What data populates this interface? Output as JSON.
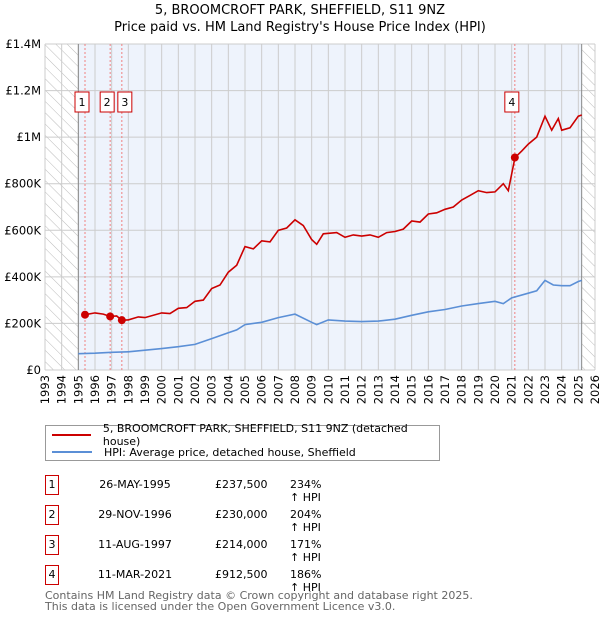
{
  "title_line1": "5, BROOMCROFT PARK, SHEFFIELD, S11 9NZ",
  "title_line2": "Price paid vs. HM Land Registry's House Price Index (HPI)",
  "chart_data": {
    "type": "line",
    "title": "5, BROOMCROFT PARK, SHEFFIELD, S11 9NZ — Price paid vs. HM Land Registry's House Price Index (HPI)",
    "xlim": [
      1993,
      2026
    ],
    "ylim": [
      0,
      1400000
    ],
    "x_ticks": [
      "1993",
      "1994",
      "1995",
      "1996",
      "1997",
      "1998",
      "1999",
      "2000",
      "2001",
      "2002",
      "2003",
      "2004",
      "2005",
      "2006",
      "2007",
      "2008",
      "2009",
      "2010",
      "2011",
      "2012",
      "2013",
      "2014",
      "2015",
      "2016",
      "2017",
      "2018",
      "2019",
      "2020",
      "2021",
      "2022",
      "2023",
      "2024",
      "2025",
      "2026"
    ],
    "y_ticks": [
      {
        "v": 0,
        "label": "£0"
      },
      {
        "v": 200000,
        "label": "£200K"
      },
      {
        "v": 400000,
        "label": "£400K"
      },
      {
        "v": 600000,
        "label": "£600K"
      },
      {
        "v": 800000,
        "label": "£800K"
      },
      {
        "v": 1000000,
        "label": "£1M"
      },
      {
        "v": 1200000,
        "label": "£1.2M"
      },
      {
        "v": 1400000,
        "label": "£1.4M"
      }
    ],
    "data_range": [
      1995.0,
      2025.2
    ],
    "series": [
      {
        "name": "5, BROOMCROFT PARK, SHEFFIELD, S11 9NZ (detached house)",
        "color": "#cc0000",
        "x": [
          1995.4,
          1996,
          1996.5,
          1996.9,
          1997.3,
          1997.6,
          1998,
          1998.6,
          1999,
          2000,
          2000.5,
          2001,
          2001.5,
          2002,
          2002.5,
          2003,
          2003.5,
          2004,
          2004.5,
          2005,
          2005.5,
          2006,
          2006.5,
          2007,
          2007.5,
          2008,
          2008.5,
          2009,
          2009.3,
          2009.7,
          2010.5,
          2011,
          2011.5,
          2012,
          2012.5,
          2013,
          2013.5,
          2014,
          2014.5,
          2015,
          2015.5,
          2016,
          2016.5,
          2017,
          2017.5,
          2018,
          2018.5,
          2019,
          2019.5,
          2020,
          2020.5,
          2020.8,
          2021.2,
          2021.6,
          2022,
          2022.5,
          2023,
          2023.4,
          2023.8,
          2024,
          2024.5,
          2025,
          2025.2
        ],
        "y": [
          237500,
          245000,
          240000,
          230000,
          232000,
          214000,
          215000,
          228000,
          225000,
          245000,
          242000,
          265000,
          268000,
          295000,
          300000,
          350000,
          365000,
          420000,
          450000,
          530000,
          520000,
          555000,
          550000,
          600000,
          610000,
          645000,
          620000,
          560000,
          540000,
          585000,
          590000,
          570000,
          580000,
          575000,
          580000,
          570000,
          590000,
          595000,
          605000,
          640000,
          635000,
          670000,
          675000,
          690000,
          700000,
          730000,
          750000,
          770000,
          762000,
          765000,
          800000,
          770000,
          912500,
          940000,
          970000,
          1000000,
          1090000,
          1030000,
          1080000,
          1030000,
          1040000,
          1090000,
          1095000
        ]
      },
      {
        "name": "HPI: Average price, detached house, Sheffield",
        "color": "#5b8fd6",
        "x": [
          1995,
          1996,
          1997,
          1998,
          1999,
          2000,
          2001,
          2002,
          2003,
          2004,
          2004.5,
          2005,
          2006,
          2007,
          2008,
          2009,
          2009.3,
          2010,
          2011,
          2012,
          2013,
          2014,
          2015,
          2016,
          2017,
          2018,
          2019,
          2020,
          2020.5,
          2021,
          2022,
          2022.5,
          2023,
          2023.5,
          2024,
          2024.5,
          2025,
          2025.2
        ],
        "y": [
          70000,
          72000,
          76000,
          78000,
          85000,
          92000,
          100000,
          110000,
          135000,
          160000,
          172000,
          195000,
          205000,
          225000,
          240000,
          205000,
          195000,
          215000,
          210000,
          208000,
          210000,
          218000,
          235000,
          250000,
          260000,
          275000,
          285000,
          295000,
          285000,
          310000,
          330000,
          340000,
          385000,
          365000,
          362000,
          362000,
          380000,
          385000
        ]
      }
    ],
    "sales": [
      {
        "id": "1",
        "x": 1995.4,
        "date": "26-MAY-1995",
        "price": "£237,500",
        "value": 237500,
        "hpi": "234% ↑ HPI"
      },
      {
        "id": "2",
        "x": 1996.91,
        "date": "29-NOV-1996",
        "price": "£230,000",
        "value": 230000,
        "hpi": "204% ↑ HPI"
      },
      {
        "id": "3",
        "x": 1997.61,
        "date": "11-AUG-1997",
        "price": "£214,000",
        "value": 214000,
        "hpi": "171% ↑ HPI"
      },
      {
        "id": "4",
        "x": 2021.19,
        "date": "11-MAR-2021",
        "price": "£912,500",
        "value": 912500,
        "hpi": "186% ↑ HPI"
      }
    ]
  },
  "legend": {
    "property": "5, BROOMCROFT PARK, SHEFFIELD, S11 9NZ (detached house)",
    "hpi": "HPI: Average price, detached house, Sheffield"
  },
  "footer_line1": "Contains HM Land Registry data © Crown copyright and database right 2025.",
  "footer_line2": "This data is licensed under the Open Government Licence v3.0."
}
